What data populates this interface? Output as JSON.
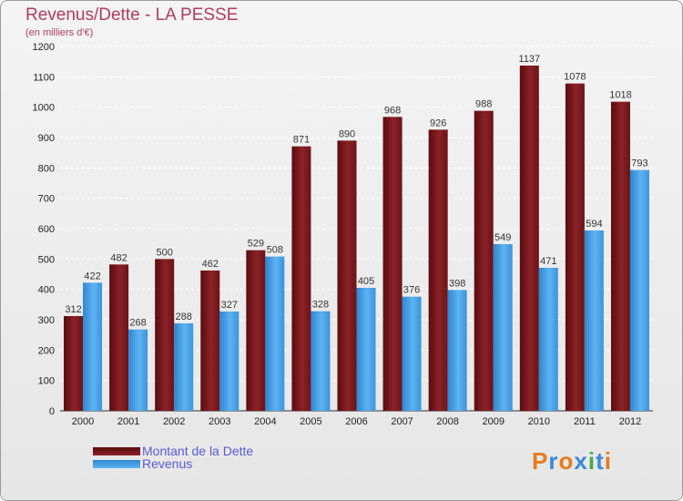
{
  "chart_data": {
    "type": "bar",
    "title": "Revenus/Dette - LA PESSE",
    "subtitle": "(en milliers d'€)",
    "categories": [
      "2000",
      "2001",
      "2002",
      "2003",
      "2004",
      "2005",
      "2006",
      "2007",
      "2008",
      "2009",
      "2010",
      "2011",
      "2012"
    ],
    "series": [
      {
        "name": "Montant de la Dette",
        "color": "#7a1a1e",
        "values": [
          312,
          482,
          500,
          462,
          529,
          871,
          890,
          968,
          926,
          988,
          1137,
          1078,
          1018
        ]
      },
      {
        "name": "Revenus",
        "color": "#4aa3e8",
        "values": [
          422,
          268,
          288,
          327,
          508,
          328,
          405,
          376,
          398,
          549,
          471,
          594,
          793
        ]
      }
    ],
    "ylim": [
      0,
      1200
    ],
    "yticks": [
      0,
      100,
      200,
      300,
      400,
      500,
      600,
      700,
      800,
      900,
      1000,
      1100,
      1200
    ],
    "grid": true,
    "legend": "bottom-left"
  },
  "logo": {
    "text": "Proxiti",
    "colors": [
      "#e87a1e",
      "#3a8ad8",
      "#e87a1e",
      "#3a8ad8",
      "#4aa84a",
      "#3a8ad8",
      "#e87a1e"
    ]
  }
}
